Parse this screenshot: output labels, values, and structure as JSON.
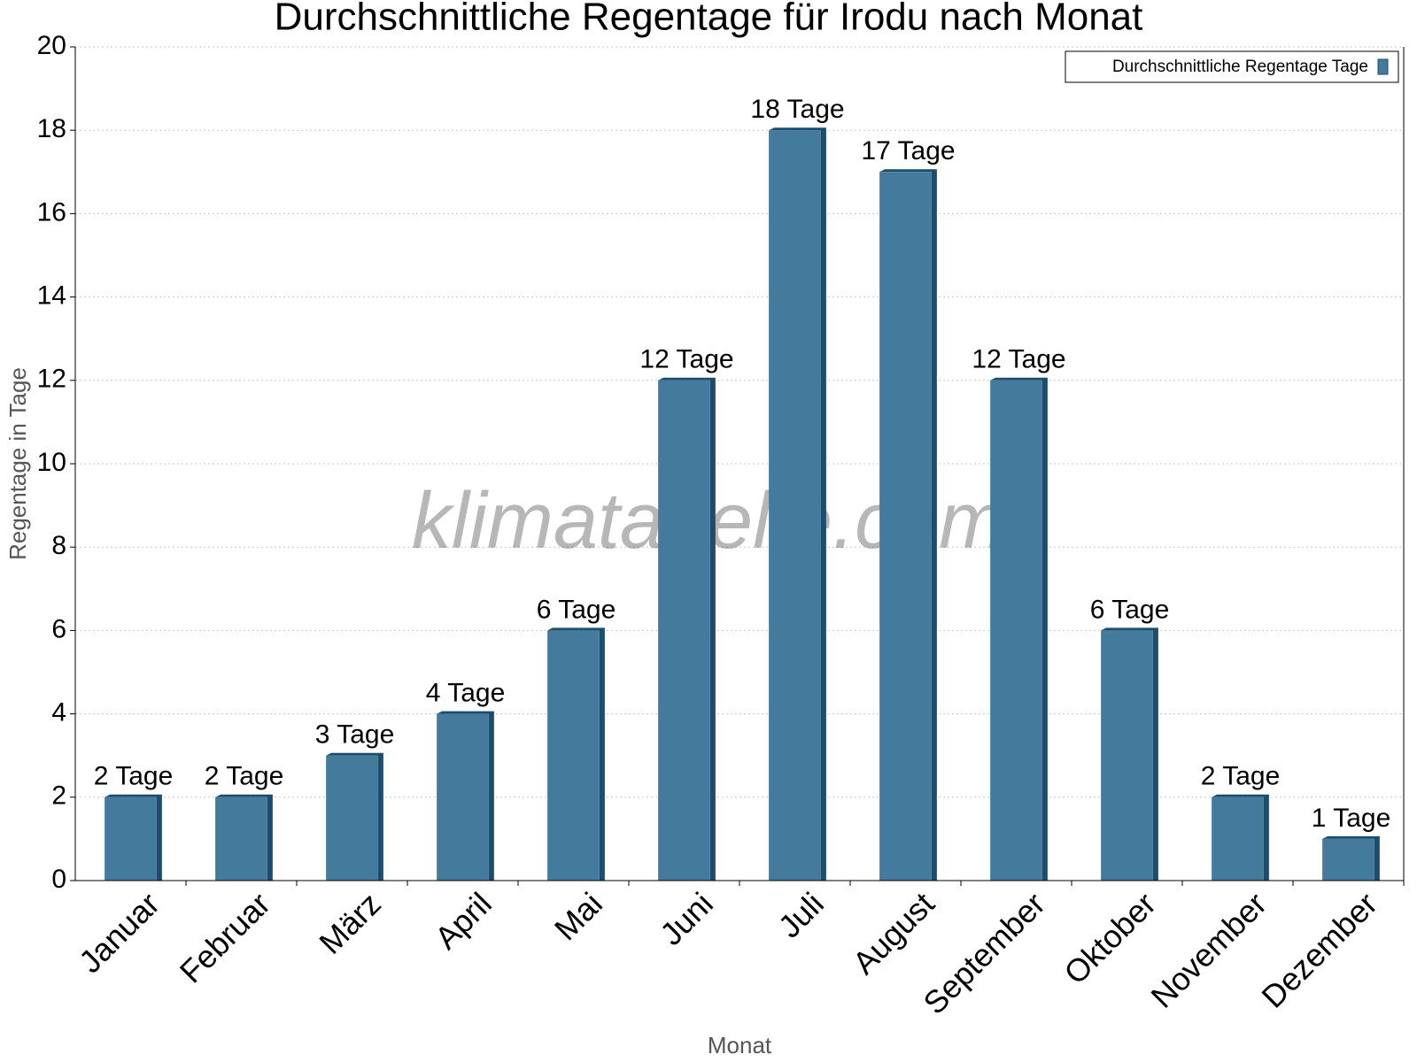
{
  "chart_data": {
    "type": "bar",
    "title": "Durchschnittliche Regentage für Irodu nach Monat",
    "x_label": "Monat",
    "y_label": "Regentage in Tage",
    "watermark": "klimatabelle.com",
    "categories": [
      "Januar",
      "Februar",
      "März",
      "April",
      "Mai",
      "Juni",
      "Juli",
      "August",
      "September",
      "Oktober",
      "November",
      "Dezember"
    ],
    "series": [
      {
        "name": "Durchschnittliche Regentage Tage",
        "color": "#447a9c",
        "values": [
          2,
          2,
          3,
          4,
          6,
          12,
          18,
          17,
          12,
          6,
          2,
          1
        ],
        "value_labels": [
          "2 Tage",
          "2 Tage",
          "3 Tage",
          "4 Tage",
          "6 Tage",
          "12 Tage",
          "18 Tage",
          "17 Tage",
          "12 Tage",
          "6 Tage",
          "2 Tage",
          "1 Tage"
        ]
      }
    ],
    "ylim": [
      0,
      20
    ],
    "yticks": [
      0,
      2,
      4,
      6,
      8,
      10,
      12,
      14,
      16,
      18,
      20
    ],
    "grid": true,
    "legend": "upper right"
  }
}
